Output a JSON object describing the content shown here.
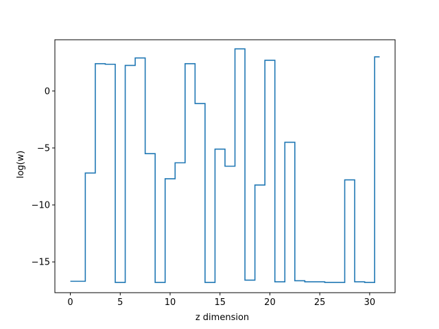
{
  "chart_data": {
    "type": "line",
    "drawstyle": "steps-mid",
    "title": "",
    "xlabel": "z dimension",
    "ylabel": "log(w)",
    "xlim": [
      -1.55,
      32.55
    ],
    "ylim": [
      -17.7,
      4.5
    ],
    "xticks": [
      0,
      5,
      10,
      15,
      20,
      25,
      30
    ],
    "yticks": [
      -15,
      -10,
      -5,
      0
    ],
    "grid": false,
    "legend": "none",
    "series_color": "#1f77b4",
    "series": [
      {
        "x": [
          0,
          1,
          2,
          3,
          4,
          5,
          6,
          7,
          8,
          9,
          10,
          11,
          12,
          13,
          14,
          15,
          16,
          17,
          18,
          19,
          20,
          21,
          22,
          23,
          24,
          25,
          26,
          27,
          28,
          29,
          30,
          31
        ],
        "values": [
          -16.7,
          -16.7,
          -7.2,
          2.4,
          2.35,
          -16.8,
          2.25,
          2.9,
          -5.5,
          -16.8,
          -7.7,
          -6.3,
          2.4,
          -1.1,
          -16.8,
          -5.1,
          -6.6,
          3.7,
          -16.6,
          -8.25,
          2.7,
          -16.75,
          -4.5,
          -16.65,
          -16.75,
          -16.75,
          -16.8,
          -16.8,
          -7.8,
          -16.75,
          -16.8,
          3.0
        ]
      }
    ]
  }
}
